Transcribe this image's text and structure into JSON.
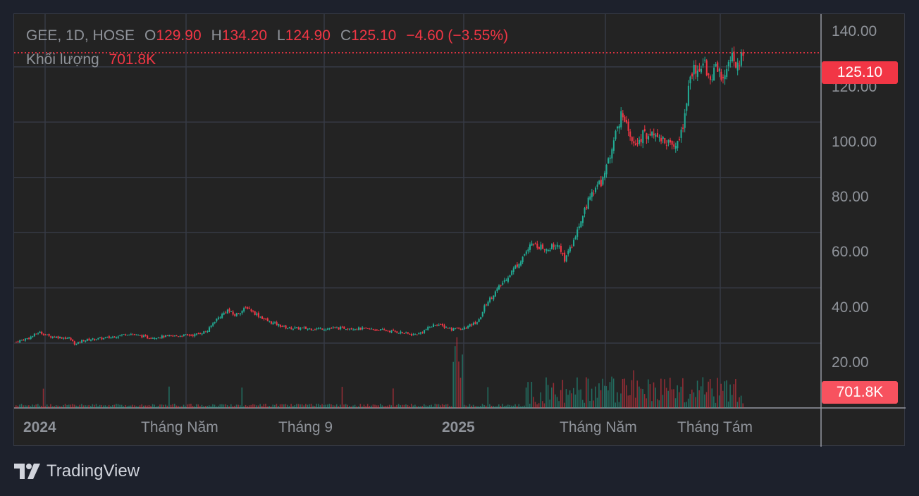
{
  "legend": {
    "symbol": "GEE, 1D, HOSE",
    "o_label": "O",
    "o_value": "129.90",
    "h_label": "H",
    "h_value": "134.20",
    "l_label": "L",
    "l_value": "124.90",
    "c_label": "C",
    "c_value": "125.10",
    "change": "−4.60 (−3.55%)",
    "volume_label": "Khối lượng",
    "volume_value": "701.8K"
  },
  "price_tag": "125.10",
  "volume_tag": "701.8K",
  "brand": "TradingView",
  "colors": {
    "up": "#22ab94",
    "down": "#f23645",
    "grid": "#363a45",
    "text": "#8f939a"
  },
  "chart_data": {
    "type": "candlestick",
    "y_axis": {
      "ticks": [
        "20.00",
        "40.00",
        "60.00",
        "80.00",
        "100.00",
        "120.00",
        "140.00"
      ],
      "range": [
        0,
        145
      ]
    },
    "x_axis": {
      "ticks": [
        "2024",
        "Tháng Năm",
        "Tháng 9",
        "2025",
        "Tháng Năm",
        "Tháng Tám"
      ],
      "bold": [
        "2024",
        "2025"
      ]
    },
    "last_close": 125.1,
    "last_volume": "701.8K",
    "close_series": [
      {
        "t": 0.0,
        "v": 20.5
      },
      {
        "t": 0.02,
        "v": 22
      },
      {
        "t": 0.035,
        "v": 24
      },
      {
        "t": 0.05,
        "v": 22.5
      },
      {
        "t": 0.08,
        "v": 21.8
      },
      {
        "t": 0.09,
        "v": 19.5
      },
      {
        "t": 0.1,
        "v": 21
      },
      {
        "t": 0.14,
        "v": 22
      },
      {
        "t": 0.17,
        "v": 23.5
      },
      {
        "t": 0.2,
        "v": 22
      },
      {
        "t": 0.23,
        "v": 22.5
      },
      {
        "t": 0.27,
        "v": 23
      },
      {
        "t": 0.29,
        "v": 24.5
      },
      {
        "t": 0.3,
        "v": 28
      },
      {
        "t": 0.32,
        "v": 32
      },
      {
        "t": 0.33,
        "v": 30
      },
      {
        "t": 0.35,
        "v": 33
      },
      {
        "t": 0.36,
        "v": 31
      },
      {
        "t": 0.38,
        "v": 28
      },
      {
        "t": 0.41,
        "v": 25.5
      },
      {
        "t": 0.45,
        "v": 25.2
      },
      {
        "t": 0.5,
        "v": 25.5
      },
      {
        "t": 0.54,
        "v": 25
      },
      {
        "t": 0.58,
        "v": 24
      },
      {
        "t": 0.6,
        "v": 23
      },
      {
        "t": 0.61,
        "v": 23.5
      },
      {
        "t": 0.62,
        "v": 25
      },
      {
        "t": 0.635,
        "v": 27
      },
      {
        "t": 0.66,
        "v": 25
      },
      {
        "t": 0.68,
        "v": 25.5
      },
      {
        "t": 0.7,
        "v": 28
      },
      {
        "t": 0.71,
        "v": 34
      },
      {
        "t": 0.73,
        "v": 40
      },
      {
        "t": 0.76,
        "v": 49
      },
      {
        "t": 0.78,
        "v": 56
      },
      {
        "t": 0.8,
        "v": 54
      },
      {
        "t": 0.82,
        "v": 56
      },
      {
        "t": 0.83,
        "v": 50
      },
      {
        "t": 0.845,
        "v": 57
      },
      {
        "t": 0.86,
        "v": 68
      },
      {
        "t": 0.87,
        "v": 74
      },
      {
        "t": 0.885,
        "v": 78
      },
      {
        "t": 0.9,
        "v": 88
      },
      {
        "t": 0.915,
        "v": 103
      },
      {
        "t": 0.93,
        "v": 95
      },
      {
        "t": 0.94,
        "v": 92
      },
      {
        "t": 0.95,
        "v": 96
      },
      {
        "t": 0.97,
        "v": 95
      },
      {
        "t": 0.985,
        "v": 93
      },
      {
        "t": 1.0,
        "v": 92
      },
      {
        "t": 1.01,
        "v": 100
      },
      {
        "t": 1.02,
        "v": 118
      },
      {
        "t": 1.04,
        "v": 122
      },
      {
        "t": 1.05,
        "v": 115
      },
      {
        "t": 1.06,
        "v": 121
      },
      {
        "t": 1.07,
        "v": 114
      },
      {
        "t": 1.08,
        "v": 125
      },
      {
        "t": 1.09,
        "v": 121
      },
      {
        "t": 1.1,
        "v": 125.1
      }
    ]
  }
}
